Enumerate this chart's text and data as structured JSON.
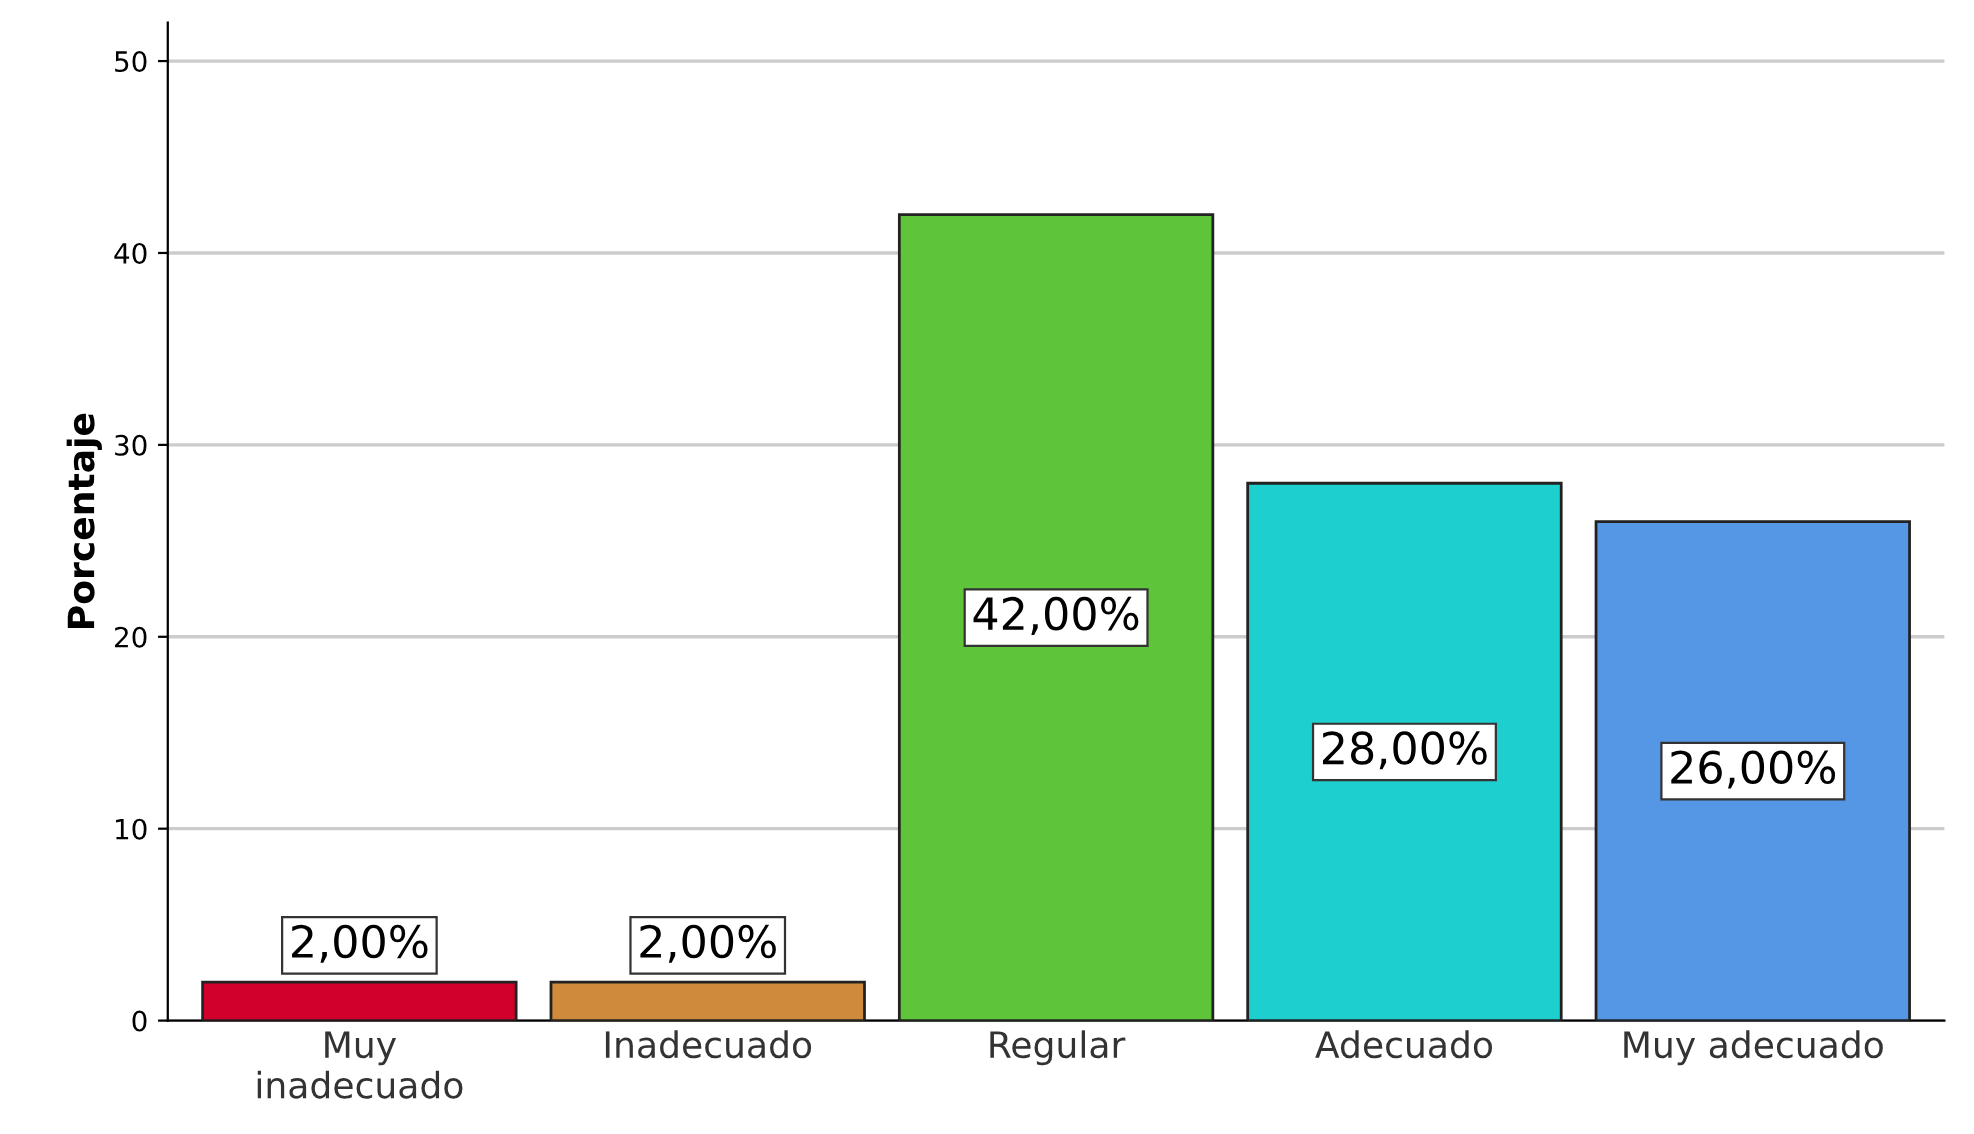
{
  "chart_data": {
    "type": "bar",
    "ylabel": "Porcentaje",
    "categories": [
      "Muy\ninadecuado",
      "Inadecuado",
      "Regular",
      "Adecuado",
      "Muy adecuado"
    ],
    "values": [
      2,
      2,
      42,
      28,
      26
    ],
    "colors": [
      "#d0002a",
      "#d08a3c",
      "#5ec43a",
      "#1ecfcf",
      "#5597e4"
    ],
    "value_labels": [
      "2,00%",
      "2,00%",
      "42,00%",
      "28,00%",
      "26,00%"
    ],
    "ylim": [
      0,
      52
    ],
    "yticks": [
      0,
      10,
      20,
      30,
      40,
      50
    ],
    "grid": "y"
  }
}
